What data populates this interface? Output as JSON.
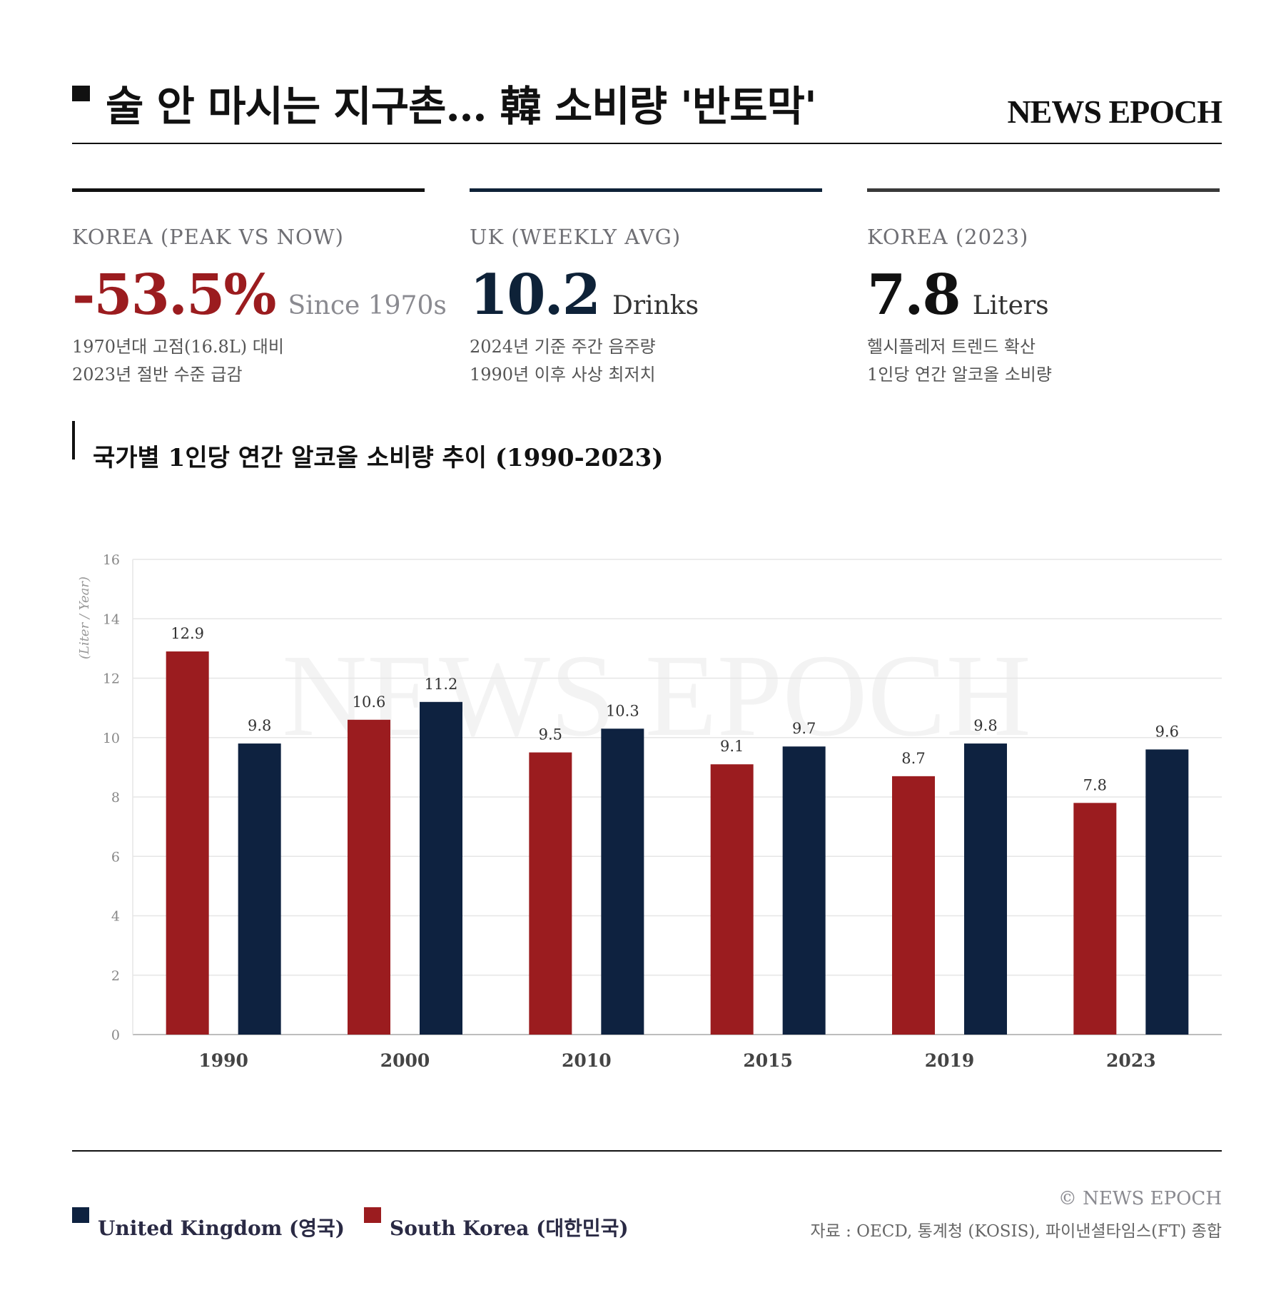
{
  "header": {
    "title": "술 안 마시는 지구촌… 韓 소비량 '반토막'",
    "brand": "NEWS EPOCH"
  },
  "cards": [
    {
      "label": "KOREA (PEAK VS NOW)",
      "value": "-53.5%",
      "unit": "Since 1970s",
      "note1": "1970년대 고점(16.8L) 대비",
      "note2": "2023년 절반 수준 급감",
      "rule_color": "#111111",
      "value_color": "#9b1c1f",
      "unit_color": "#8a8a90"
    },
    {
      "label": "UK (WEEKLY AVG)",
      "value": "10.2",
      "unit": "Drinks",
      "note1": "2024년 기준 주간 음주량",
      "note2": "1990년 이후 사상 최저치",
      "rule_color": "#0e2238",
      "value_color": "#0e2238",
      "unit_color": "#333333"
    },
    {
      "label": "KOREA (2023)",
      "value": "7.8",
      "unit": "Liters",
      "note1": "헬시플레저 트렌드 확산",
      "note2": "1인당 연간 알코올 소비량",
      "rule_color": "#3a3a3a",
      "value_color": "#111111",
      "unit_color": "#333333"
    }
  ],
  "chart_title": "국가별 1인당 연간 알코올 소비량 추이 (1990-2023)",
  "chart_data": {
    "type": "bar",
    "categories": [
      "1990",
      "2000",
      "2010",
      "2015",
      "2019",
      "2023"
    ],
    "series": [
      {
        "name": "South Korea (대한민국)",
        "color": "#9b1c1f",
        "values": [
          12.9,
          10.6,
          9.5,
          9.1,
          8.7,
          7.8
        ],
        "labels": [
          "12.9",
          "10.6",
          "9.5",
          "9.1",
          "8.7",
          "7.8"
        ]
      },
      {
        "name": "United Kingdom (영국)",
        "color": "#0e2240",
        "values": [
          9.8,
          11.2,
          10.3,
          9.7,
          9.8,
          9.6
        ],
        "labels": [
          "9.8",
          "11.2",
          "10.3",
          "9.7",
          "9.8",
          "9.6"
        ]
      }
    ],
    "ylabel": "(Liter / Year)",
    "ylim": [
      0,
      16
    ],
    "yticks": [
      "0",
      "2",
      "4",
      "6",
      "8",
      "10",
      "12",
      "14",
      "16"
    ],
    "grid": true,
    "watermark": "NEWS EPOCH",
    "legend": "bottom-left"
  },
  "legend": [
    {
      "label": "United Kingdom (영국)",
      "color": "#0e2240"
    },
    {
      "label": "South Korea (대한민국)",
      "color": "#9b1c1f"
    }
  ],
  "footer": {
    "copyright": "© NEWS EPOCH",
    "source": "자료 : OECD, 통계청 (KOSIS), 파이낸셜타임스(FT) 종합"
  }
}
